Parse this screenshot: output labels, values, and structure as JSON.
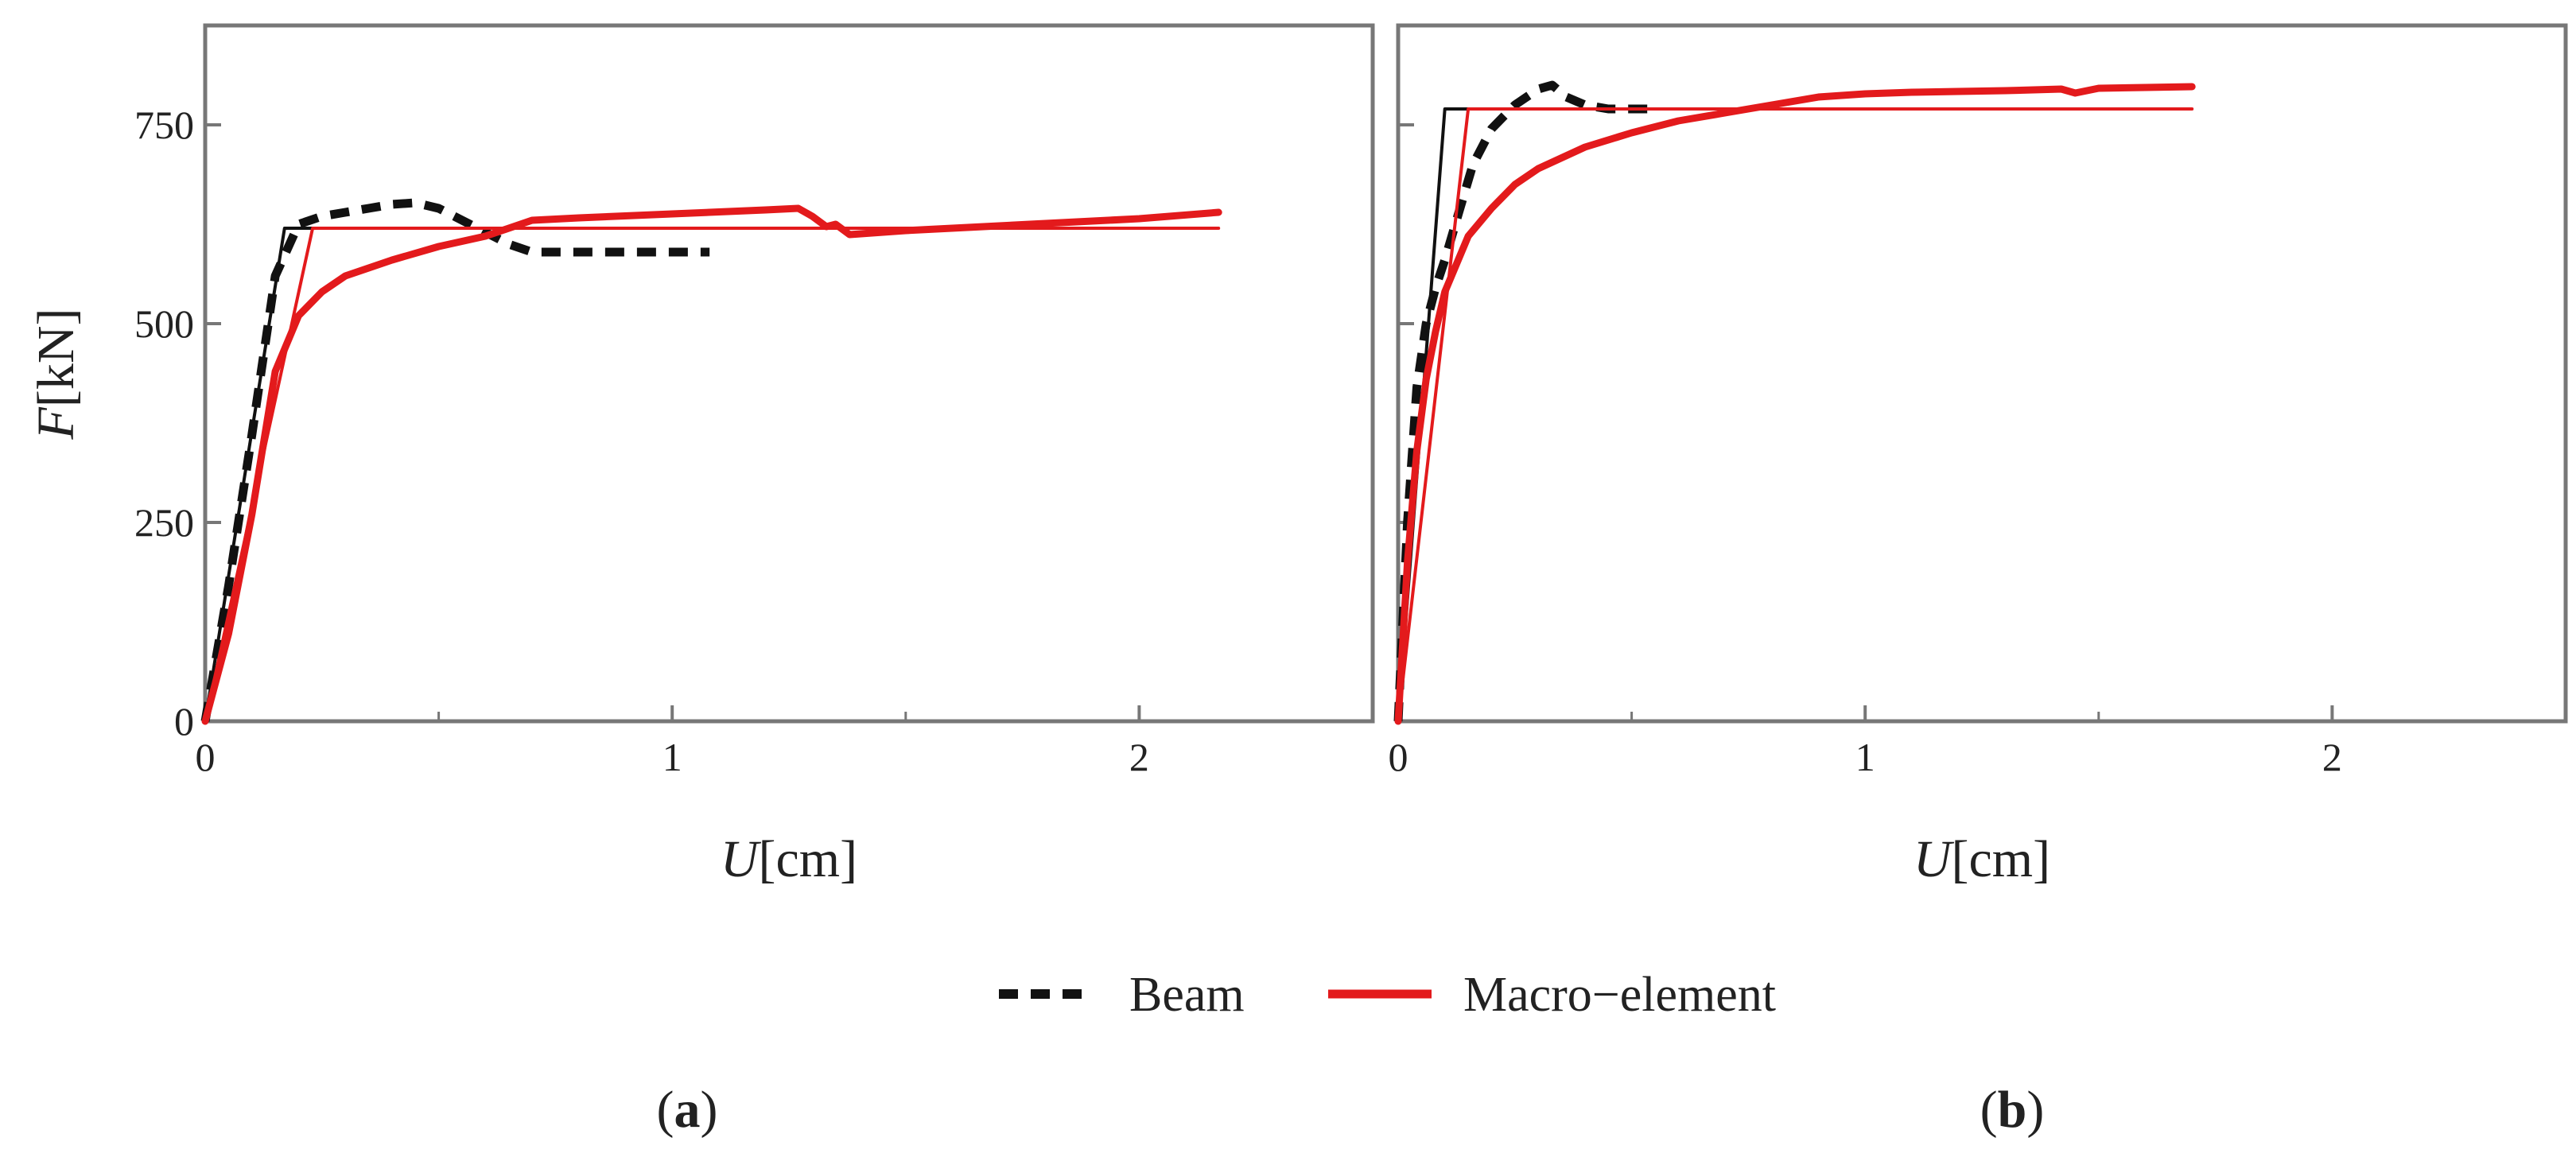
{
  "figure": {
    "legend": [
      {
        "label": "Beam",
        "color": "#111111",
        "style": "dashed"
      },
      {
        "label": "Macro−element",
        "color": "#e31a1c",
        "style": "solid"
      }
    ],
    "y_axis_label_italic": "F",
    "y_axis_label_unit": "[kN]",
    "x_axis_label_italic": "U",
    "x_axis_label_unit": "[cm]"
  },
  "chart_data": [
    {
      "type": "line",
      "panel_label": "a",
      "xlabel": "U[cm]",
      "ylabel": "F[kN]",
      "xlim": [
        0,
        2.5
      ],
      "ylim": [
        0,
        875
      ],
      "xticks": [
        0,
        1,
        2
      ],
      "xticks_minor": [
        0.5,
        1.5
      ],
      "yticks": [
        0,
        250,
        500,
        750
      ],
      "series": [
        {
          "name": "Beam",
          "color": "#111111",
          "style": "dashed",
          "width": 11,
          "x": [
            0,
            0.05,
            0.1,
            0.15,
            0.2,
            0.25,
            0.3,
            0.35,
            0.4,
            0.45,
            0.5,
            0.55,
            0.6,
            0.65,
            0.7,
            0.8,
            0.9,
            1.0,
            1.08
          ],
          "y": [
            0,
            170,
            360,
            560,
            625,
            635,
            640,
            645,
            650,
            652,
            645,
            630,
            615,
            600,
            590,
            590,
            590,
            590,
            590
          ]
        },
        {
          "name": "Beam bilinear",
          "color": "#111111",
          "style": "solid",
          "width": 4,
          "x": [
            0,
            0.17,
            1.08
          ],
          "y": [
            0,
            620,
            620
          ]
        },
        {
          "name": "Macro−element",
          "color": "#e31a1c",
          "style": "solid",
          "width": 9,
          "x": [
            0,
            0.05,
            0.1,
            0.15,
            0.2,
            0.25,
            0.3,
            0.4,
            0.5,
            0.6,
            0.7,
            0.8,
            1.0,
            1.2,
            1.27,
            1.3,
            1.33,
            1.35,
            1.38,
            1.5,
            1.7,
            2.0,
            2.17
          ],
          "y": [
            0,
            110,
            260,
            440,
            510,
            540,
            560,
            580,
            597,
            610,
            630,
            633,
            638,
            643,
            645,
            635,
            622,
            625,
            612,
            617,
            623,
            632,
            640
          ]
        },
        {
          "name": "Macro−element bilinear",
          "color": "#e31a1c",
          "style": "solid",
          "width": 4,
          "x": [
            0,
            0.23,
            2.17
          ],
          "y": [
            0,
            620,
            620
          ]
        }
      ]
    },
    {
      "type": "line",
      "panel_label": "b",
      "xlabel": "U[cm]",
      "ylabel": "F[kN]",
      "xlim": [
        0,
        2.5
      ],
      "ylim": [
        0,
        875
      ],
      "xticks": [
        0,
        1,
        2
      ],
      "xticks_minor": [
        0.5,
        1.5
      ],
      "yticks": [
        0,
        250,
        500,
        750
      ],
      "series": [
        {
          "name": "Beam",
          "color": "#111111",
          "style": "dashed",
          "width": 11,
          "x": [
            0,
            0.02,
            0.04,
            0.06,
            0.08,
            0.1,
            0.13,
            0.16,
            0.2,
            0.25,
            0.3,
            0.33,
            0.36,
            0.4,
            0.45,
            0.5,
            0.55
          ],
          "y": [
            0,
            250,
            420,
            500,
            545,
            580,
            640,
            700,
            745,
            775,
            795,
            800,
            785,
            775,
            770,
            770,
            770
          ]
        },
        {
          "name": "Beam bilinear",
          "color": "#111111",
          "style": "solid",
          "width": 4,
          "x": [
            0,
            0.1,
            0.55
          ],
          "y": [
            0,
            770,
            770
          ]
        },
        {
          "name": "Macro−element",
          "color": "#e31a1c",
          "style": "solid",
          "width": 9,
          "x": [
            0,
            0.02,
            0.04,
            0.06,
            0.08,
            0.1,
            0.15,
            0.2,
            0.25,
            0.3,
            0.4,
            0.5,
            0.6,
            0.7,
            0.8,
            0.9,
            1.0,
            1.1,
            1.2,
            1.3,
            1.42,
            1.45,
            1.5,
            1.6,
            1.7
          ],
          "y": [
            0,
            200,
            340,
            430,
            490,
            540,
            610,
            645,
            675,
            695,
            722,
            740,
            755,
            765,
            775,
            785,
            789,
            791,
            792,
            793,
            795,
            790,
            796,
            797,
            798
          ]
        },
        {
          "name": "Macro−element bilinear",
          "color": "#e31a1c",
          "style": "solid",
          "width": 4,
          "x": [
            0,
            0.15,
            1.7
          ],
          "y": [
            0,
            770,
            770
          ]
        }
      ]
    }
  ]
}
